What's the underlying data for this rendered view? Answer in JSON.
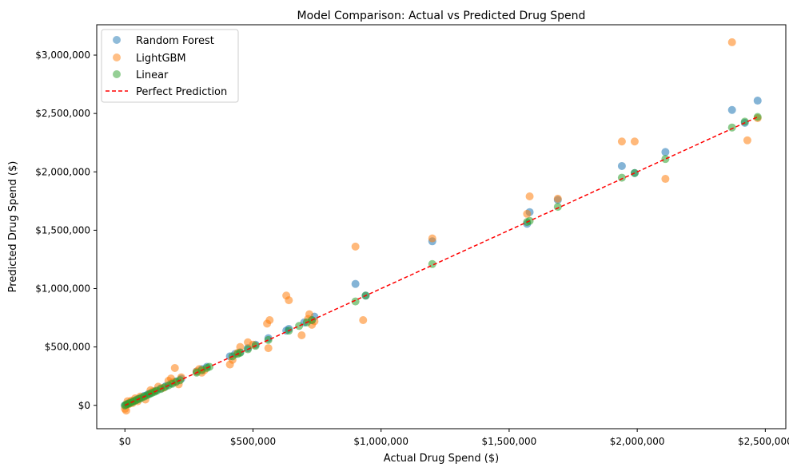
{
  "chart_data": {
    "type": "scatter",
    "title": "Model Comparison: Actual vs Predicted Drug Spend",
    "xlabel": "Actual Drug Spend ($)",
    "ylabel": "Predicted Drug Spend ($)",
    "xlim": [
      -110000,
      2580000
    ],
    "ylim": [
      -200000,
      3260000
    ],
    "xticks": [
      {
        "value": 0,
        "label": "$0"
      },
      {
        "value": 500000,
        "label": "$500,000"
      },
      {
        "value": 1000000,
        "label": "$1,000,000"
      },
      {
        "value": 1500000,
        "label": "$1,500,000"
      },
      {
        "value": 2000000,
        "label": "$2,000,000"
      },
      {
        "value": 2500000,
        "label": "$2,500,000"
      }
    ],
    "yticks": [
      {
        "value": 0,
        "label": "$0"
      },
      {
        "value": 500000,
        "label": "$500,000"
      },
      {
        "value": 1000000,
        "label": "$1,000,000"
      },
      {
        "value": 1500000,
        "label": "$1,500,000"
      },
      {
        "value": 2000000,
        "label": "$2,000,000"
      },
      {
        "value": 2500000,
        "label": "$2,500,000"
      },
      {
        "value": 3000000,
        "label": "$3,000,000"
      }
    ],
    "grid": false,
    "legend_position": "top-left",
    "series": [
      {
        "name": "Random Forest",
        "color": "#1f77b4",
        "x": [
          0,
          10000,
          20000,
          30000,
          40000,
          50000,
          60000,
          75000,
          90000,
          100000,
          120000,
          140000,
          160000,
          180000,
          200000,
          220000,
          280000,
          300000,
          320000,
          410000,
          430000,
          450000,
          480000,
          510000,
          560000,
          630000,
          640000,
          700000,
          730000,
          740000,
          900000,
          940000,
          1200000,
          1570000,
          1580000,
          1690000,
          1940000,
          1990000,
          2110000,
          2370000,
          2420000,
          2470000
        ],
        "y": [
          0,
          15000,
          25000,
          32000,
          42000,
          55000,
          62000,
          80000,
          95000,
          105000,
          125000,
          145000,
          165000,
          188000,
          205000,
          228000,
          290000,
          310000,
          330000,
          420000,
          440000,
          455000,
          490000,
          520000,
          575000,
          640000,
          655000,
          710000,
          730000,
          760000,
          1040000,
          940000,
          1405000,
          1555000,
          1655000,
          1760000,
          2050000,
          1990000,
          2170000,
          2530000,
          2420000,
          2610000
        ]
      },
      {
        "name": "LightGBM",
        "color": "#ff7f0e",
        "x": [
          0,
          5000,
          10000,
          15000,
          25000,
          30000,
          40000,
          50000,
          60000,
          80000,
          100000,
          110000,
          130000,
          150000,
          170000,
          180000,
          190000,
          195000,
          210000,
          220000,
          280000,
          290000,
          300000,
          310000,
          410000,
          420000,
          440000,
          450000,
          480000,
          500000,
          560000,
          555000,
          565000,
          630000,
          640000,
          690000,
          715000,
          720000,
          730000,
          740000,
          900000,
          930000,
          1200000,
          1570000,
          1580000,
          1690000,
          1940000,
          1990000,
          2110000,
          2370000,
          2430000,
          2470000
        ],
        "y": [
          -30000,
          -45000,
          35000,
          10000,
          40000,
          20000,
          60000,
          35000,
          75000,
          50000,
          130000,
          120000,
          160000,
          150000,
          210000,
          230000,
          200000,
          320000,
          180000,
          240000,
          290000,
          310000,
          280000,
          300000,
          350000,
          390000,
          450000,
          500000,
          540000,
          520000,
          490000,
          700000,
          730000,
          940000,
          900000,
          600000,
          740000,
          780000,
          690000,
          720000,
          1360000,
          730000,
          1430000,
          1640000,
          1790000,
          1770000,
          2260000,
          2260000,
          1940000,
          3110000,
          2270000,
          2460000
        ]
      },
      {
        "name": "Linear",
        "color": "#2ca02c",
        "x": [
          0,
          5000,
          12000,
          20000,
          28000,
          36000,
          45000,
          55000,
          65000,
          75000,
          85000,
          95000,
          105000,
          115000,
          125000,
          140000,
          155000,
          170000,
          185000,
          200000,
          215000,
          280000,
          300000,
          320000,
          330000,
          420000,
          440000,
          450000,
          480000,
          510000,
          560000,
          640000,
          680000,
          710000,
          730000,
          900000,
          940000,
          1200000,
          1570000,
          1580000,
          1690000,
          1940000,
          1990000,
          2110000,
          2370000,
          2420000,
          2470000
        ],
        "y": [
          0,
          5000,
          12000,
          20000,
          28000,
          36000,
          45000,
          55000,
          65000,
          75000,
          85000,
          95000,
          105000,
          115000,
          125000,
          140000,
          155000,
          170000,
          185000,
          200000,
          215000,
          280000,
          300000,
          320000,
          330000,
          420000,
          440000,
          450000,
          480000,
          510000,
          560000,
          640000,
          680000,
          710000,
          730000,
          890000,
          940000,
          1210000,
          1570000,
          1580000,
          1700000,
          1950000,
          1990000,
          2110000,
          2380000,
          2430000,
          2470000
        ]
      }
    ],
    "reference_line": {
      "name": "Perfect Prediction",
      "color": "#ff0000",
      "style": "dashed",
      "x": [
        0,
        2470000
      ],
      "y": [
        0,
        2470000
      ]
    }
  }
}
